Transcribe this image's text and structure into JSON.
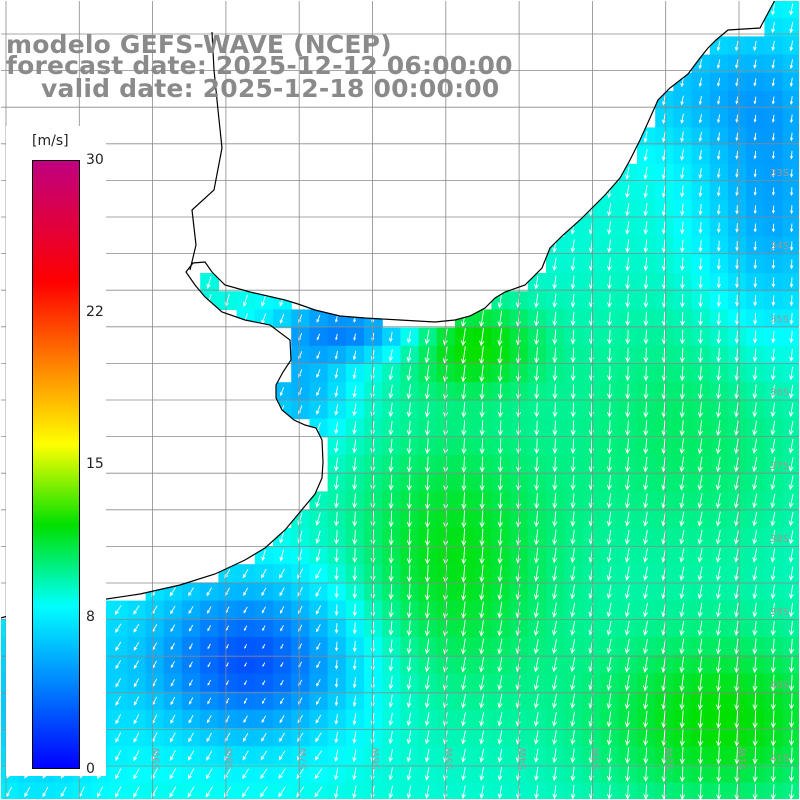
{
  "title": {
    "line1": "modelo GEFS-WAVE (NCEP)",
    "line2": "forecast date: 2025-12-12 06:00:00",
    "line3": "valid date: 2025-12-18 00:00:00"
  },
  "colorbar": {
    "unit": "[m/s]",
    "ticks": [
      "30",
      "22",
      "15",
      "8",
      "0"
    ],
    "tick_values": [
      30,
      22,
      15,
      8,
      0
    ],
    "range": [
      0,
      30
    ],
    "colors": [
      "#0000ff",
      "#00ffff",
      "#00e000",
      "#ffff00",
      "#ff8000",
      "#ff0000",
      "#c00080"
    ]
  },
  "map": {
    "variable": "wind speed",
    "lat_labels": [
      "33S",
      "34S",
      "35S",
      "36S",
      "37S",
      "38S",
      "39S",
      "40S",
      "41S"
    ],
    "lon_labels": [
      "60W",
      "59W",
      "58W",
      "57W",
      "56W",
      "55W",
      "54W",
      "53W",
      "52W",
      "51W"
    ],
    "land_color": "#ffffff",
    "grid_color": "#999999"
  }
}
